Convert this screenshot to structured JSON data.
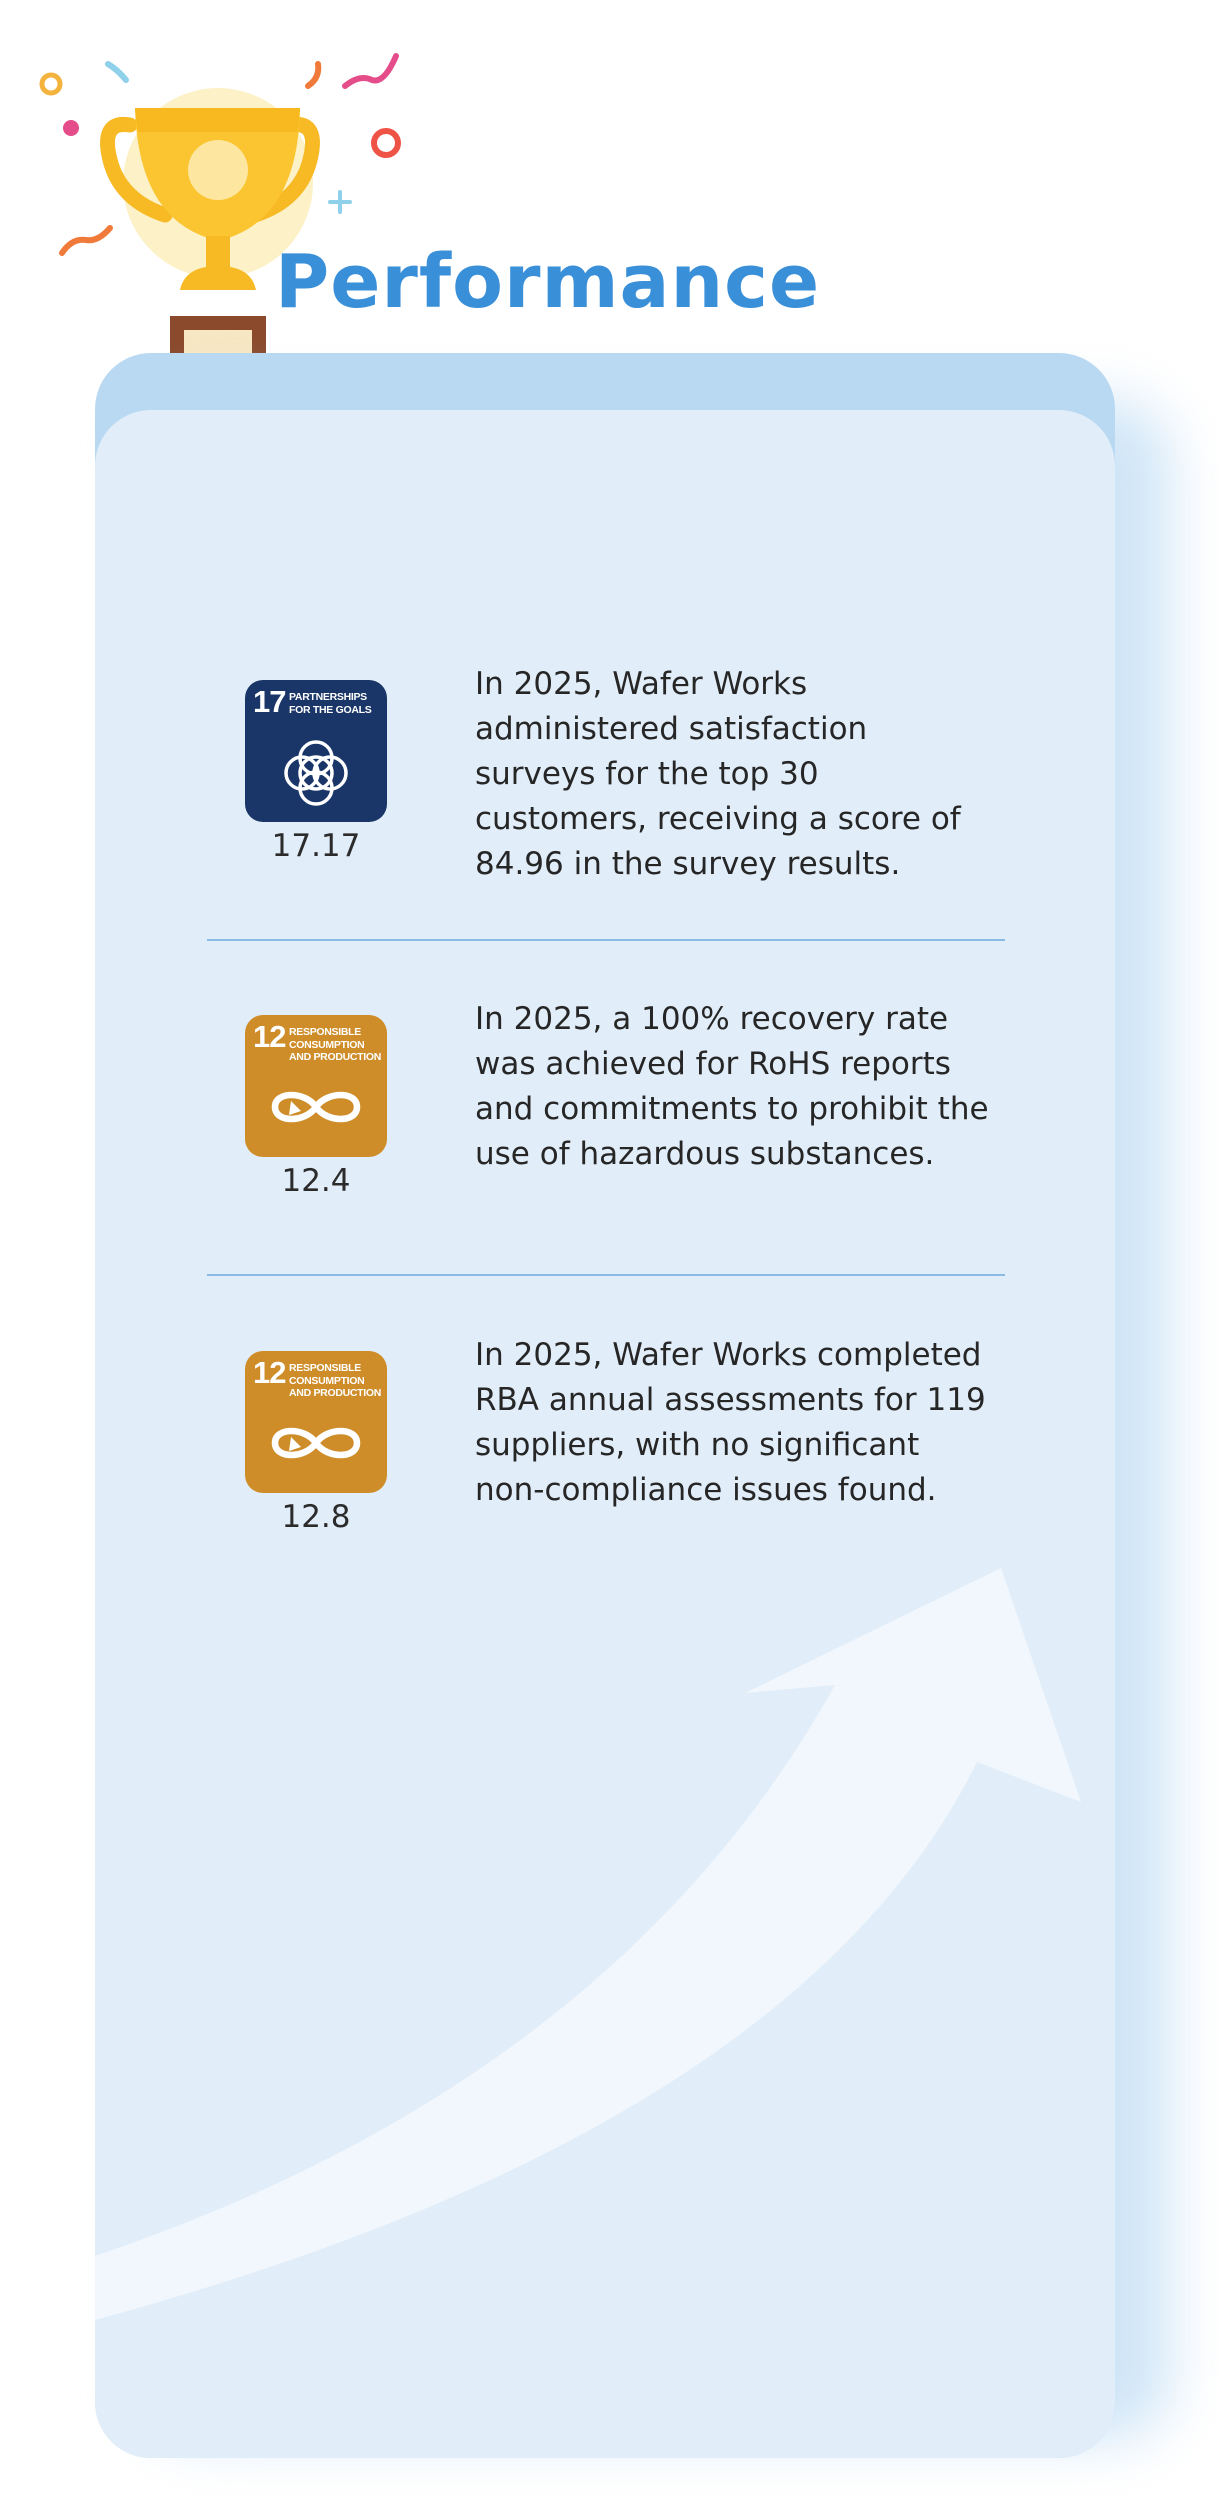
{
  "page": {
    "title": "Performance"
  },
  "colors": {
    "title": "#3a8fd9",
    "card_background": "#e1edf8",
    "card_back": "#b9d9f2",
    "divider": "#8bbbe5",
    "sdg17": "#1a3668",
    "sdg12": "#cf8d2a"
  },
  "items": [
    {
      "sdg_number": "17",
      "sdg_label": "Partnerships for the goals",
      "sdg_icon": "interlinked-rings-icon",
      "target": "17.17",
      "description": "In 2025, Wafer Works administered satisfaction surveys for the top 30 customers, receiving a score of 84.96 in the survey results."
    },
    {
      "sdg_number": "12",
      "sdg_label": "Responsible consumption and production",
      "sdg_icon": "infinity-arrow-icon",
      "target": "12.4",
      "description": "In 2025, a 100% recovery rate was achieved for RoHS reports and commitments to prohibit the use of hazardous substances."
    },
    {
      "sdg_number": "12",
      "sdg_label": "Responsible consumption and production",
      "sdg_icon": "infinity-arrow-icon",
      "target": "12.8",
      "description": "In 2025, Wafer Works completed RBA annual assessments for 119 suppliers, with no significant non-compliance issues found."
    }
  ]
}
